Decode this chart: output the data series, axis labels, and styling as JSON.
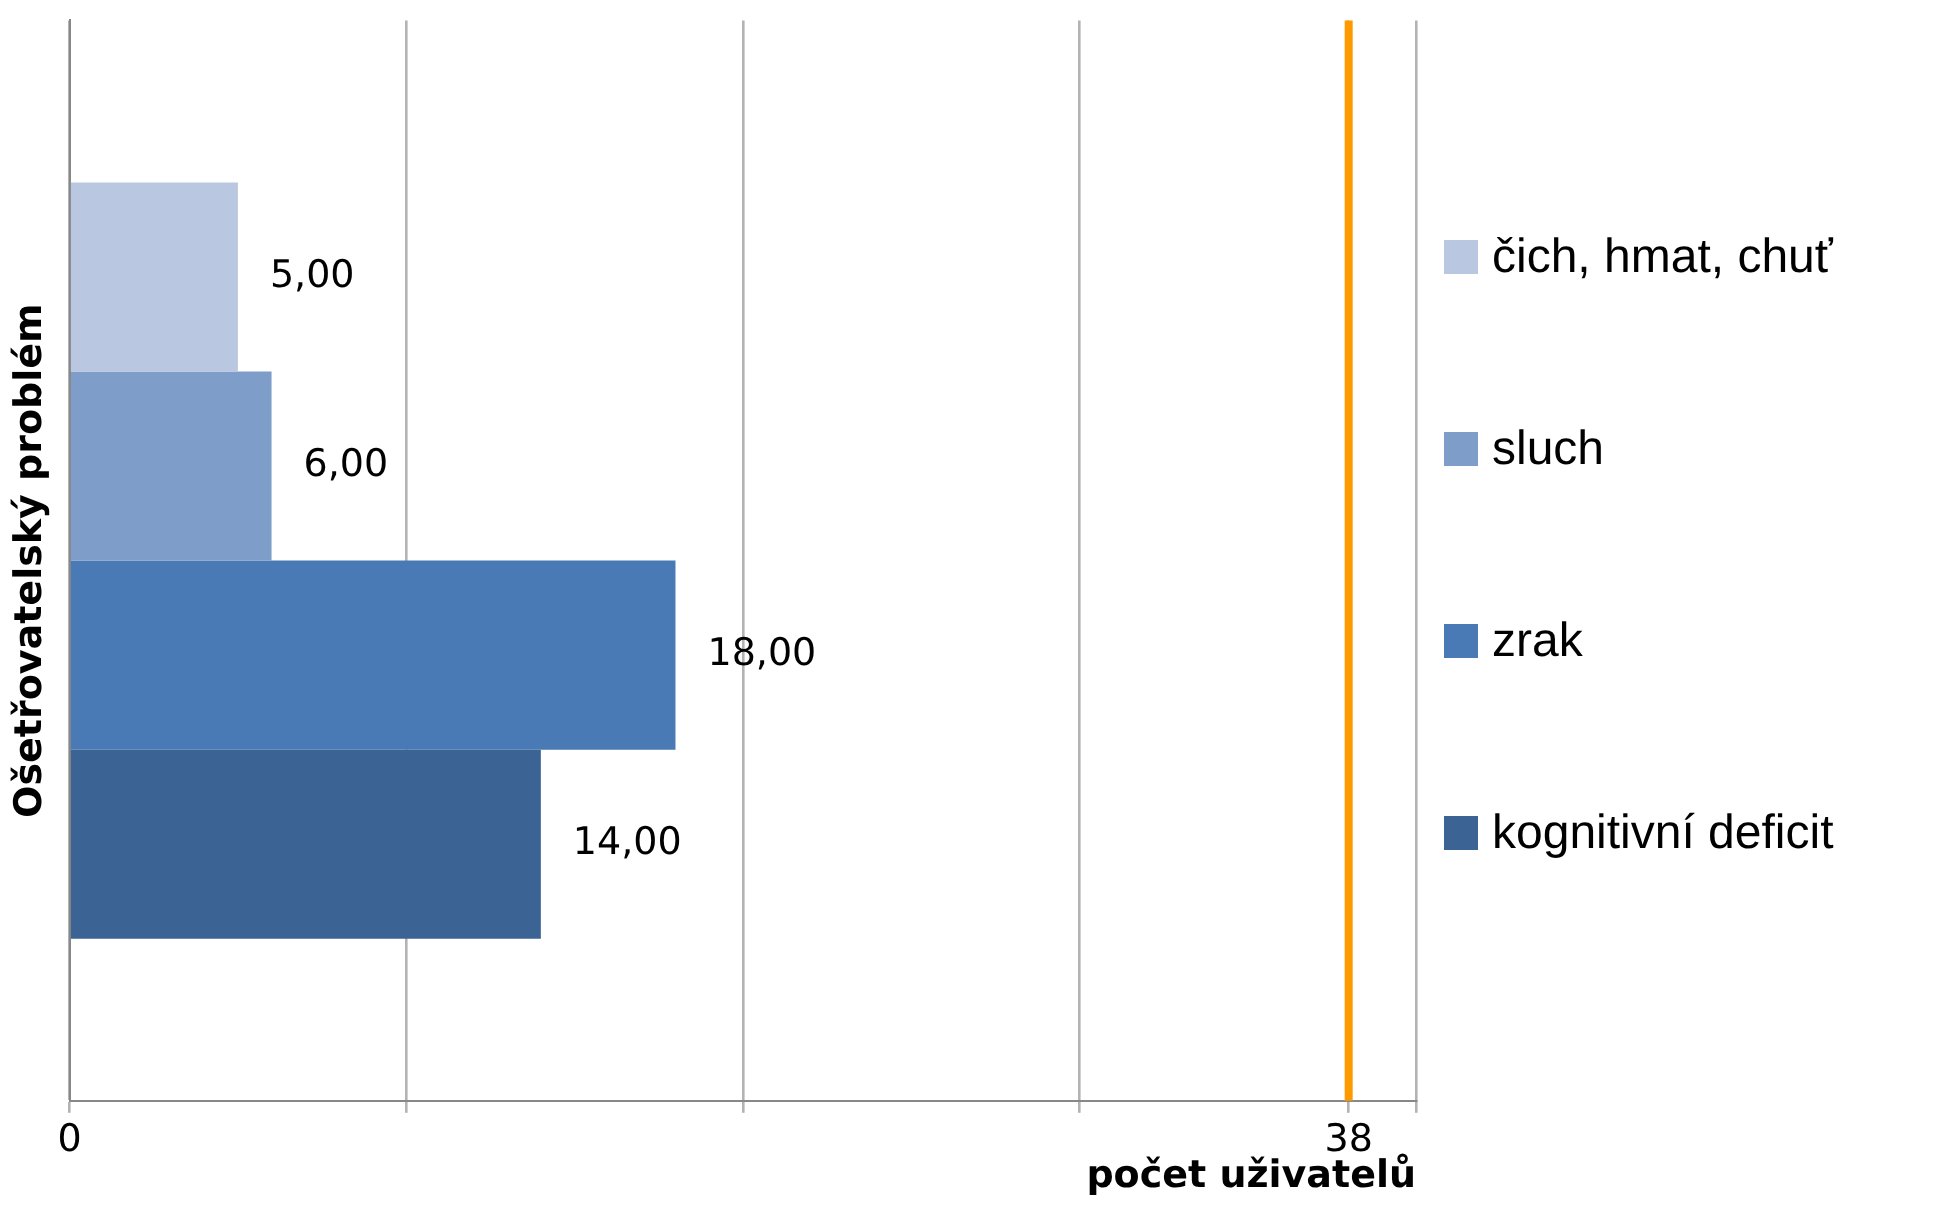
{
  "chart_data": {
    "type": "bar",
    "orientation": "horizontal",
    "xlabel": "počet uživatelů",
    "ylabel": "Ošetřovatelský problém",
    "categories": [
      null
    ],
    "series": [
      {
        "name": "čich, hmat, chuť",
        "color": "#b9c7e0",
        "values": [
          5
        ],
        "value_labels": [
          "5,00"
        ]
      },
      {
        "name": "sluch",
        "color": "#7f9dc9",
        "values": [
          6
        ],
        "value_labels": [
          "6,00"
        ]
      },
      {
        "name": "zrak",
        "color": "#4a7ab5",
        "values": [
          18
        ],
        "value_labels": [
          "18,00"
        ]
      },
      {
        "name": "kognitivní deficit",
        "color": "#3b6494",
        "values": [
          14
        ],
        "value_labels": [
          "14,00"
        ]
      }
    ],
    "xlim": [
      0,
      40
    ],
    "xticks": [
      0,
      {
        "value": 10,
        "label": null
      },
      {
        "value": 20,
        "label": null
      },
      {
        "value": 30,
        "label": null
      },
      {
        "value": 38,
        "label": "38"
      },
      {
        "value": 40,
        "label": null
      }
    ],
    "ref_lines": [
      {
        "axis": "x",
        "value": 38,
        "color": "#ff9900"
      }
    ],
    "grid": "x",
    "legend": "right"
  }
}
